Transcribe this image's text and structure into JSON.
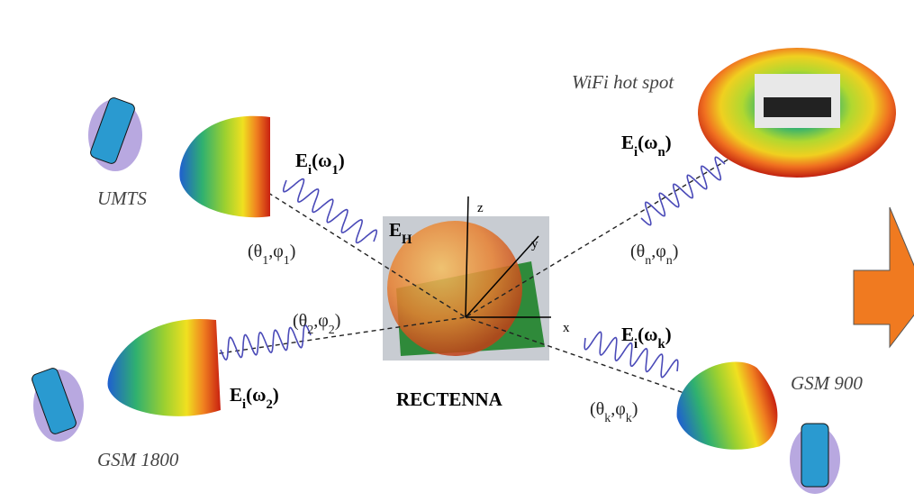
{
  "center": {
    "label": "RECTENNA",
    "field": [
      {
        "t": "E"
      },
      {
        "t": "H",
        "sub": true
      }
    ],
    "axes": {
      "x": "x",
      "y": "y",
      "z": "z"
    }
  },
  "sources": [
    {
      "name": "UMTS",
      "field": [
        {
          "t": "E"
        },
        {
          "t": "i",
          "sub": true
        },
        {
          "t": "(ω"
        },
        {
          "t": "1",
          "sub": true
        },
        {
          "t": ")"
        }
      ],
      "angles": [
        {
          "t": "(θ"
        },
        {
          "t": "1",
          "sub": true
        },
        {
          "t": ",φ"
        },
        {
          "t": "1",
          "sub": true
        },
        {
          "t": ")"
        }
      ]
    },
    {
      "name": "GSM 1800",
      "field": [
        {
          "t": "E"
        },
        {
          "t": "i",
          "sub": true
        },
        {
          "t": "(ω"
        },
        {
          "t": "2",
          "sub": true
        },
        {
          "t": ")"
        }
      ],
      "angles": [
        {
          "t": "(θ"
        },
        {
          "t": "2",
          "sub": true
        },
        {
          "t": ",φ"
        },
        {
          "t": "2",
          "sub": true
        },
        {
          "t": ")"
        }
      ]
    },
    {
      "name": "WiFi hot spot",
      "field": [
        {
          "t": "E"
        },
        {
          "t": "i",
          "sub": true
        },
        {
          "t": "(ω"
        },
        {
          "t": "n",
          "sub": true
        },
        {
          "t": ")"
        }
      ],
      "angles": [
        {
          "t": "(θ"
        },
        {
          "t": "n",
          "sub": true
        },
        {
          "t": ",φ"
        },
        {
          "t": "n",
          "sub": true
        },
        {
          "t": ")"
        }
      ]
    },
    {
      "name": "GSM 900",
      "field": [
        {
          "t": "E"
        },
        {
          "t": "i",
          "sub": true
        },
        {
          "t": "(ω"
        },
        {
          "t": "k",
          "sub": true
        },
        {
          "t": ")"
        }
      ],
      "angles": [
        {
          "t": "(θ"
        },
        {
          "t": "k",
          "sub": true
        },
        {
          "t": ",φ"
        },
        {
          "t": "k",
          "sub": true
        },
        {
          "t": ")"
        }
      ]
    }
  ]
}
